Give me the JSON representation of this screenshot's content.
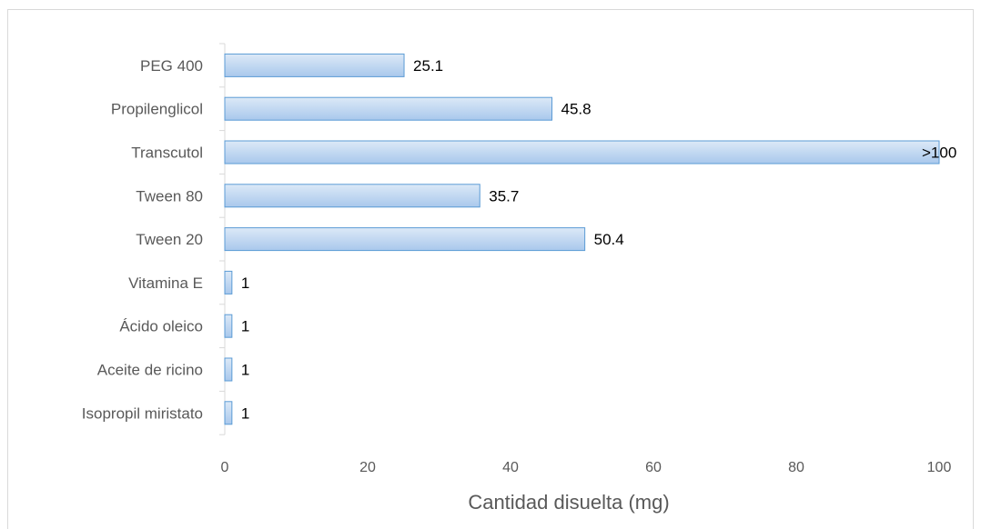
{
  "chart_data": {
    "type": "bar",
    "orientation": "horizontal",
    "categories": [
      "PEG 400",
      "Propilenglicol",
      "Transcutol",
      "Tween 80",
      "Tween 20",
      "Vitamina E",
      "Ácido oleico",
      "Aceite de ricino",
      "Isopropil miristato"
    ],
    "values": [
      25.1,
      45.8,
      100,
      35.7,
      50.4,
      1,
      1,
      1,
      1
    ],
    "data_labels": [
      "25.1",
      "45.8",
      ">100",
      "35.7",
      "50.4",
      "1",
      "1",
      "1",
      "1"
    ],
    "xticks": [
      "0",
      "20",
      "40",
      "60",
      "80",
      "100"
    ],
    "xlim": [
      0,
      100
    ],
    "xlabel": "Cantidad disuelta (mg)",
    "ylabel": "",
    "title": "",
    "grid": false,
    "legend": "none",
    "bar_fill_top": "#dce9f7",
    "bar_fill_bottom": "#a9c8ec",
    "bar_stroke": "#5b9bd5",
    "axis_color": "#d9d9d9"
  }
}
